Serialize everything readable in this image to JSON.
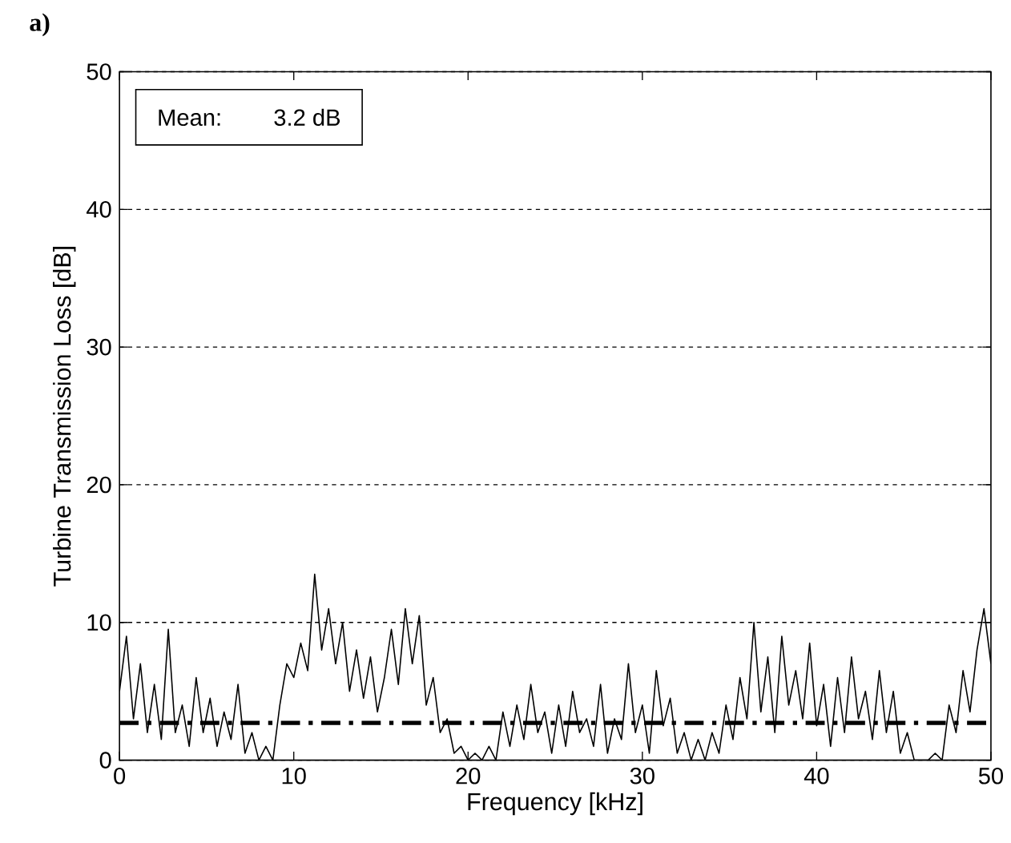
{
  "chart_data": {
    "type": "line",
    "title": "a)",
    "xlabel": "Frequency [kHz]",
    "ylabel": "Turbine Transmission Loss [dB]",
    "annotations": [
      "Mean:",
      "3.2 dB"
    ],
    "xlim": [
      0,
      50
    ],
    "ylim": [
      0,
      50
    ],
    "xticks": [
      0,
      10,
      20,
      30,
      40,
      50
    ],
    "yticks": [
      0,
      10,
      20,
      30,
      40,
      50
    ],
    "grid": "y",
    "ref_lines": [
      {
        "axis": "y",
        "value": 2.7,
        "line_style": "dashdot",
        "color": "#000000"
      }
    ],
    "series": [
      {
        "color": "#000000",
        "x": [
          0,
          0.4,
          0.8,
          1.2,
          1.6,
          2.0,
          2.4,
          2.8,
          3.2,
          3.6,
          4.0,
          4.4,
          4.8,
          5.2,
          5.6,
          6.0,
          6.4,
          6.8,
          7.2,
          7.6,
          8.0,
          8.4,
          8.8,
          9.2,
          9.6,
          10.0,
          10.4,
          10.8,
          11.2,
          11.6,
          12.0,
          12.4,
          12.8,
          13.2,
          13.6,
          14.0,
          14.4,
          14.8,
          15.2,
          15.6,
          16.0,
          16.4,
          16.8,
          17.2,
          17.6,
          18.0,
          18.4,
          18.8,
          19.2,
          19.6,
          20.0,
          20.4,
          20.8,
          21.2,
          21.6,
          22.0,
          22.4,
          22.8,
          23.2,
          23.6,
          24.0,
          24.4,
          24.8,
          25.2,
          25.6,
          26.0,
          26.4,
          26.8,
          27.2,
          27.6,
          28.0,
          28.4,
          28.8,
          29.2,
          29.6,
          30.0,
          30.4,
          30.8,
          31.2,
          31.6,
          32.0,
          32.4,
          32.8,
          33.2,
          33.6,
          34.0,
          34.4,
          34.8,
          35.2,
          35.6,
          36.0,
          36.4,
          36.8,
          37.2,
          37.6,
          38.0,
          38.4,
          38.8,
          39.2,
          39.6,
          40.0,
          40.4,
          40.8,
          41.2,
          41.6,
          42.0,
          42.4,
          42.8,
          43.2,
          43.6,
          44.0,
          44.4,
          44.8,
          45.2,
          45.6,
          46.0,
          46.4,
          46.8,
          47.2,
          47.6,
          48.0,
          48.4,
          48.8,
          49.2,
          49.6,
          50.0
        ],
        "values": [
          5.0,
          9.0,
          3.0,
          7.0,
          2.0,
          5.5,
          1.5,
          9.5,
          2.0,
          4.0,
          1.0,
          6.0,
          2.0,
          4.5,
          1.0,
          3.5,
          1.5,
          5.5,
          0.5,
          2.0,
          0.0,
          1.0,
          0.0,
          4.0,
          7.0,
          6.0,
          8.5,
          6.5,
          13.5,
          8.0,
          11.0,
          7.0,
          10.0,
          5.0,
          8.0,
          4.5,
          7.5,
          3.5,
          6.0,
          9.5,
          5.5,
          11.0,
          7.0,
          10.5,
          4.0,
          6.0,
          2.0,
          3.0,
          0.5,
          1.0,
          0.0,
          0.5,
          0.0,
          1.0,
          0.0,
          3.5,
          1.0,
          4.0,
          1.5,
          5.5,
          2.0,
          3.5,
          0.5,
          4.0,
          1.0,
          5.0,
          2.0,
          3.0,
          1.0,
          5.5,
          0.5,
          3.0,
          1.5,
          7.0,
          2.0,
          4.0,
          0.5,
          6.5,
          2.5,
          4.5,
          0.5,
          2.0,
          0.0,
          1.5,
          0.0,
          2.0,
          0.5,
          4.0,
          1.5,
          6.0,
          3.0,
          10.0,
          3.5,
          7.5,
          2.0,
          9.0,
          4.0,
          6.5,
          3.0,
          8.5,
          2.5,
          5.5,
          1.0,
          6.0,
          2.0,
          7.5,
          3.0,
          5.0,
          1.5,
          6.5,
          2.0,
          5.0,
          0.5,
          2.0,
          0.0,
          0.0,
          0.0,
          0.5,
          0.0,
          4.0,
          2.0,
          6.5,
          3.5,
          8.0,
          11.0,
          7.0
        ]
      }
    ]
  }
}
